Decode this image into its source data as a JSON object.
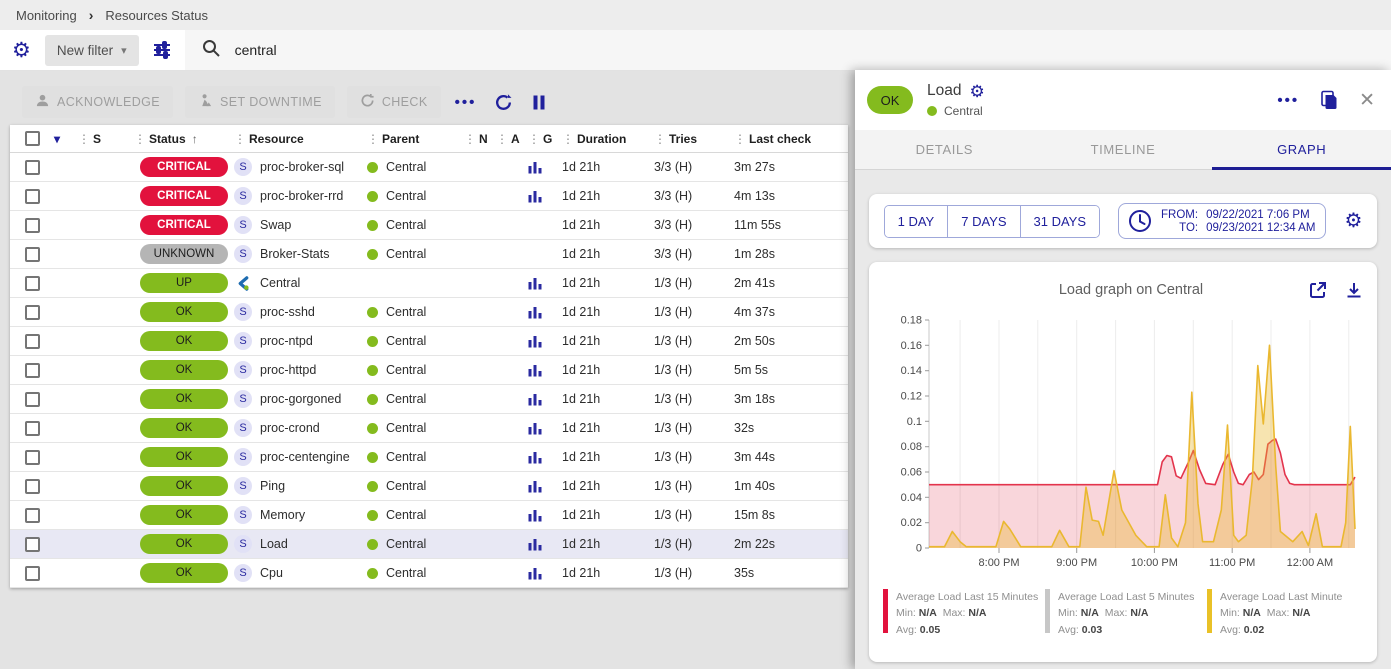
{
  "colors": {
    "accent": "#20209c",
    "critical": "#e2123d",
    "success": "#84bb1e",
    "unknown": "#b5b5b5",
    "selected_row": "#e8e8f4"
  },
  "icons": {
    "gear": "⚙",
    "caret_down": "▾",
    "sort_asc": "↑",
    "drag_handle": "⋮",
    "more": "•••",
    "close": "✕",
    "breadcrumb_sep": "›"
  },
  "breadcrumb": {
    "items": [
      "Monitoring",
      "Resources Status"
    ]
  },
  "filter_bar": {
    "new_filter_label": "New filter",
    "search_value": "central"
  },
  "action_bar": {
    "acknowledge": "ACKNOWLEDGE",
    "set_downtime": "SET DOWNTIME",
    "check": "CHECK"
  },
  "table": {
    "columns": [
      "S",
      "Status",
      "Resource",
      "Parent",
      "N",
      "A",
      "G",
      "Duration",
      "Tries",
      "Last check"
    ],
    "rows": [
      {
        "status": "CRITICAL",
        "type": "critical",
        "resource": "proc-broker-sql",
        "icon": "service",
        "parent": "Central",
        "graph": true,
        "duration": "1d 21h",
        "tries": "3/3 (H)",
        "last_check": "3m 27s",
        "selected": false
      },
      {
        "status": "CRITICAL",
        "type": "critical",
        "resource": "proc-broker-rrd",
        "icon": "service",
        "parent": "Central",
        "graph": true,
        "duration": "1d 21h",
        "tries": "3/3 (H)",
        "last_check": "4m 13s",
        "selected": false
      },
      {
        "status": "CRITICAL",
        "type": "critical",
        "resource": "Swap",
        "icon": "service",
        "parent": "Central",
        "graph": false,
        "duration": "1d 21h",
        "tries": "3/3 (H)",
        "last_check": "11m 55s",
        "selected": false
      },
      {
        "status": "UNKNOWN",
        "type": "unknown",
        "resource": "Broker-Stats",
        "icon": "service",
        "parent": "Central",
        "graph": false,
        "duration": "1d 21h",
        "tries": "3/3 (H)",
        "last_check": "1m 28s",
        "selected": false
      },
      {
        "status": "UP",
        "type": "up",
        "resource": "Central",
        "icon": "host",
        "parent": "",
        "graph": true,
        "duration": "1d 21h",
        "tries": "1/3 (H)",
        "last_check": "2m 41s",
        "selected": false
      },
      {
        "status": "OK",
        "type": "ok",
        "resource": "proc-sshd",
        "icon": "service",
        "parent": "Central",
        "graph": true,
        "duration": "1d 21h",
        "tries": "1/3 (H)",
        "last_check": "4m 37s",
        "selected": false
      },
      {
        "status": "OK",
        "type": "ok",
        "resource": "proc-ntpd",
        "icon": "service",
        "parent": "Central",
        "graph": true,
        "duration": "1d 21h",
        "tries": "1/3 (H)",
        "last_check": "2m 50s",
        "selected": false
      },
      {
        "status": "OK",
        "type": "ok",
        "resource": "proc-httpd",
        "icon": "service",
        "parent": "Central",
        "graph": true,
        "duration": "1d 21h",
        "tries": "1/3 (H)",
        "last_check": "5m 5s",
        "selected": false
      },
      {
        "status": "OK",
        "type": "ok",
        "resource": "proc-gorgoned",
        "icon": "service",
        "parent": "Central",
        "graph": true,
        "duration": "1d 21h",
        "tries": "1/3 (H)",
        "last_check": "3m 18s",
        "selected": false
      },
      {
        "status": "OK",
        "type": "ok",
        "resource": "proc-crond",
        "icon": "service",
        "parent": "Central",
        "graph": true,
        "duration": "1d 21h",
        "tries": "1/3 (H)",
        "last_check": "32s",
        "selected": false
      },
      {
        "status": "OK",
        "type": "ok",
        "resource": "proc-centengine",
        "icon": "service",
        "parent": "Central",
        "graph": true,
        "duration": "1d 21h",
        "tries": "1/3 (H)",
        "last_check": "3m 44s",
        "selected": false
      },
      {
        "status": "OK",
        "type": "ok",
        "resource": "Ping",
        "icon": "service",
        "parent": "Central",
        "graph": true,
        "duration": "1d 21h",
        "tries": "1/3 (H)",
        "last_check": "1m 40s",
        "selected": false
      },
      {
        "status": "OK",
        "type": "ok",
        "resource": "Memory",
        "icon": "service",
        "parent": "Central",
        "graph": true,
        "duration": "1d 21h",
        "tries": "1/3 (H)",
        "last_check": "15m 8s",
        "selected": false
      },
      {
        "status": "OK",
        "type": "ok",
        "resource": "Load",
        "icon": "service",
        "parent": "Central",
        "graph": true,
        "duration": "1d 21h",
        "tries": "1/3 (H)",
        "last_check": "2m 22s",
        "selected": true
      },
      {
        "status": "OK",
        "type": "ok",
        "resource": "Cpu",
        "icon": "service",
        "parent": "Central",
        "graph": true,
        "duration": "1d 21h",
        "tries": "1/3 (H)",
        "last_check": "35s",
        "selected": false
      }
    ]
  },
  "panel": {
    "status": "OK",
    "title": "Load",
    "host": "Central",
    "tabs": [
      {
        "label": "DETAILS",
        "active": false
      },
      {
        "label": "TIMELINE",
        "active": false
      },
      {
        "label": "GRAPH",
        "active": true
      }
    ],
    "time_buttons": [
      "1 DAY",
      "7 DAYS",
      "31 DAYS"
    ],
    "from_label": "FROM:",
    "from_value": "09/22/2021 7:06 PM",
    "to_label": "TO:",
    "to_value": "09/23/2021 12:34 AM"
  },
  "chart_data": {
    "type": "area",
    "title": "Load graph on Central",
    "xlabel": "",
    "ylabel": "",
    "x_range": [
      19.1,
      24.58
    ],
    "y_range": [
      0,
      0.18
    ],
    "y_tick_step": 0.02,
    "x_grid": {
      "start": 19.5,
      "step": 0.5,
      "end": 24.5
    },
    "x_ticks": [
      {
        "value": 20,
        "label": "8:00 PM"
      },
      {
        "value": 21,
        "label": "9:00 PM"
      },
      {
        "value": 22,
        "label": "10:00 PM"
      },
      {
        "value": 23,
        "label": "11:00 PM"
      },
      {
        "value": 24,
        "label": "12:00 AM"
      }
    ],
    "series": [
      {
        "name": "Average Load Last 15 Minutes",
        "line": "#e3344c",
        "fill": "rgba(227,52,76,0.20)",
        "points": [
          [
            19.1,
            0.05
          ],
          [
            22.04,
            0.05
          ],
          [
            22.1,
            0.068
          ],
          [
            22.16,
            0.073
          ],
          [
            22.22,
            0.072
          ],
          [
            22.28,
            0.057
          ],
          [
            22.34,
            0.055
          ],
          [
            22.44,
            0.068
          ],
          [
            22.5,
            0.077
          ],
          [
            22.58,
            0.062
          ],
          [
            22.66,
            0.051
          ],
          [
            22.78,
            0.05
          ],
          [
            22.88,
            0.066
          ],
          [
            22.95,
            0.074
          ],
          [
            23.02,
            0.06
          ],
          [
            23.08,
            0.051
          ],
          [
            23.14,
            0.05
          ],
          [
            23.22,
            0.058
          ],
          [
            23.28,
            0.06
          ],
          [
            23.34,
            0.054
          ],
          [
            23.4,
            0.058
          ],
          [
            23.46,
            0.082
          ],
          [
            23.52,
            0.085
          ],
          [
            23.56,
            0.086
          ],
          [
            23.62,
            0.075
          ],
          [
            23.68,
            0.058
          ],
          [
            23.74,
            0.051
          ],
          [
            23.8,
            0.05
          ],
          [
            24.44,
            0.05
          ],
          [
            24.52,
            0.05
          ],
          [
            24.58,
            0.056
          ]
        ]
      },
      {
        "name": "Average Load Last 5 Minutes",
        "line": "#c7c7c7",
        "fill": "rgba(199,199,199,0.3)",
        "points": []
      },
      {
        "name": "Average Load Last Minute",
        "line": "#eab830",
        "fill": "rgba(234,184,48,0.38)",
        "points": [
          [
            19.1,
            0.001
          ],
          [
            19.3,
            0.001
          ],
          [
            19.4,
            0.013
          ],
          [
            19.5,
            0.005
          ],
          [
            19.58,
            0.001
          ],
          [
            19.96,
            0.001
          ],
          [
            20.06,
            0.021
          ],
          [
            20.14,
            0.015
          ],
          [
            20.28,
            0.001
          ],
          [
            20.68,
            0.001
          ],
          [
            20.78,
            0.014
          ],
          [
            20.9,
            0.001
          ],
          [
            21.04,
            0.001
          ],
          [
            21.12,
            0.048
          ],
          [
            21.2,
            0.022
          ],
          [
            21.28,
            0.021
          ],
          [
            21.34,
            0.01
          ],
          [
            21.48,
            0.061
          ],
          [
            21.58,
            0.03
          ],
          [
            21.76,
            0.01
          ],
          [
            21.9,
            0.001
          ],
          [
            22.06,
            0.001
          ],
          [
            22.14,
            0.042
          ],
          [
            22.22,
            0.008
          ],
          [
            22.3,
            0.001
          ],
          [
            22.4,
            0.02
          ],
          [
            22.48,
            0.123
          ],
          [
            22.56,
            0.035
          ],
          [
            22.62,
            0.005
          ],
          [
            22.76,
            0.005
          ],
          [
            22.86,
            0.03
          ],
          [
            22.94,
            0.097
          ],
          [
            23.02,
            0.01
          ],
          [
            23.08,
            0.005
          ],
          [
            23.18,
            0.01
          ],
          [
            23.26,
            0.055
          ],
          [
            23.33,
            0.144
          ],
          [
            23.4,
            0.098
          ],
          [
            23.48,
            0.16
          ],
          [
            23.56,
            0.065
          ],
          [
            23.62,
            0.013
          ],
          [
            23.78,
            0.005
          ],
          [
            23.9,
            0.013
          ],
          [
            23.98,
            0.002
          ],
          [
            24.08,
            0.027
          ],
          [
            24.16,
            0.001
          ],
          [
            24.4,
            0.001
          ],
          [
            24.46,
            0.02
          ],
          [
            24.52,
            0.096
          ],
          [
            24.58,
            0.015
          ]
        ]
      }
    ],
    "legend": [
      {
        "color": "#e2123d",
        "name": "Average Load Last 15 Minutes",
        "min": "N/A",
        "max": "N/A",
        "avg": "0.05"
      },
      {
        "color": "#c7c7c7",
        "name": "Average Load Last 5 Minutes",
        "min": "N/A",
        "max": "N/A",
        "avg": "0.03"
      },
      {
        "color": "#e9c127",
        "name": "Average Load Last Minute",
        "min": "N/A",
        "max": "N/A",
        "avg": "0.02"
      }
    ],
    "legend_labels": {
      "min": "Min:",
      "max": "Max:",
      "avg": "Avg:"
    },
    "legend_position": "bottom",
    "grid": true
  }
}
